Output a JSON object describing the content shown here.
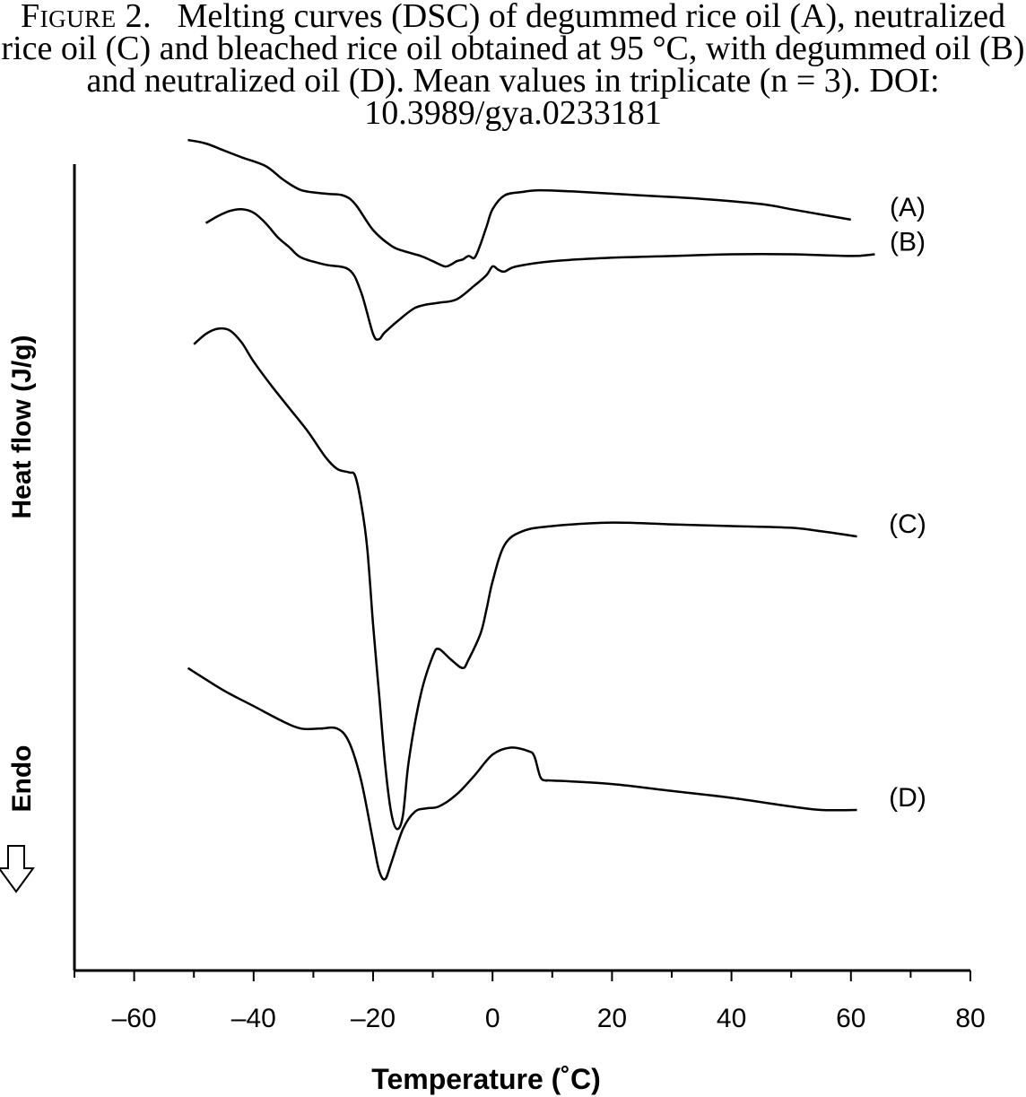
{
  "caption": {
    "lead": "Figure 2.",
    "text": "Melting curves (DSC) of degummed rice oil (A), neutralized rice oil (C) and bleached rice oil obtained at 95 °C, with degummed oil (B) and neutralized oil (D). Mean values in triplicate (n = 3). DOI: 10.3989/gya.0233181"
  },
  "chart_data": {
    "type": "line",
    "title": "",
    "xlabel": "Temperature (˚C)",
    "ylabel": "Heat flow (J/g)",
    "endo_label": "Endo",
    "xlim": [
      -70,
      80
    ],
    "xticks": [
      -60,
      -40,
      -20,
      0,
      20,
      40,
      60,
      80
    ],
    "xtick_labels": [
      "–60",
      "–40",
      "–20",
      "0",
      "20",
      "40",
      "60",
      "80"
    ],
    "y_units": "relative (curves vertically offset)",
    "series": [
      {
        "name": "(A)",
        "x": [
          -51,
          -48,
          -45,
          -42,
          -38,
          -35,
          -32,
          -28,
          -25,
          -23,
          -20,
          -17,
          -15,
          -12,
          -10,
          -8,
          -7,
          -6,
          -5,
          -4,
          -3,
          -2,
          -1,
          0,
          2,
          5,
          8,
          15,
          25,
          35,
          45,
          50,
          55,
          60
        ],
        "y": [
          230,
          228,
          224,
          220,
          215,
          207,
          201,
          199,
          198,
          193,
          178,
          169,
          166,
          163,
          160,
          157,
          158,
          160,
          161,
          163,
          162,
          170,
          180,
          190,
          198,
          200,
          201,
          200,
          198,
          196,
          193,
          190,
          187,
          184
        ]
      },
      {
        "name": "(B)",
        "x": [
          -48,
          -46,
          -44,
          -42,
          -40,
          -38,
          -36,
          -34,
          -32,
          -28,
          -24,
          -22,
          -20,
          -19,
          -18,
          -15,
          -13,
          -11,
          -9,
          -6,
          -3,
          -1,
          0,
          1,
          2,
          4,
          10,
          20,
          30,
          40,
          50,
          60,
          64
        ],
        "y": [
          182,
          186,
          189,
          190,
          188,
          182,
          174,
          168,
          162,
          158,
          155,
          142,
          118,
          115,
          119,
          128,
          133,
          135,
          136,
          138,
          146,
          152,
          157,
          155,
          154,
          157,
          160,
          162,
          163,
          164,
          164,
          163,
          164
        ]
      },
      {
        "name": "(C)",
        "x": [
          -50,
          -48,
          -46,
          -44,
          -42,
          -40,
          -37,
          -34,
          -31,
          -28,
          -26,
          -24,
          -23,
          -22,
          -21,
          -20,
          -19,
          -18,
          -17,
          -16,
          -15,
          -14,
          -12,
          -10,
          -9,
          -7,
          -5,
          -4,
          -2,
          -1,
          0,
          2,
          5,
          10,
          20,
          30,
          40,
          50,
          55,
          61
        ],
        "y": [
          112,
          118,
          121,
          120,
          113,
          102,
          88,
          75,
          62,
          47,
          40,
          38,
          36,
          20,
          -5,
          -50,
          -90,
          -130,
          -158,
          -168,
          -160,
          -128,
          -90,
          -68,
          -64,
          -70,
          -75,
          -70,
          -55,
          -41,
          -25,
          -4,
          4,
          7,
          9,
          8,
          7,
          6,
          4,
          1
        ]
      },
      {
        "name": "(D)",
        "x": [
          -51,
          -45,
          -40,
          -35,
          -32,
          -29,
          -26,
          -24,
          -22,
          -20,
          -19,
          -18,
          -17,
          -15,
          -13,
          -11,
          -9,
          -6,
          -3,
          0,
          3,
          6,
          7,
          8,
          9,
          10,
          20,
          30,
          40,
          50,
          55,
          61
        ],
        "y": [
          -75,
          -88,
          -97,
          -106,
          -110,
          -110,
          -110,
          -118,
          -140,
          -175,
          -192,
          -197,
          -188,
          -168,
          -158,
          -156,
          -155,
          -148,
          -137,
          -125,
          -121,
          -123,
          -126,
          -138,
          -140,
          -140,
          -142,
          -146,
          -150,
          -155,
          -157,
          -157
        ]
      }
    ]
  }
}
